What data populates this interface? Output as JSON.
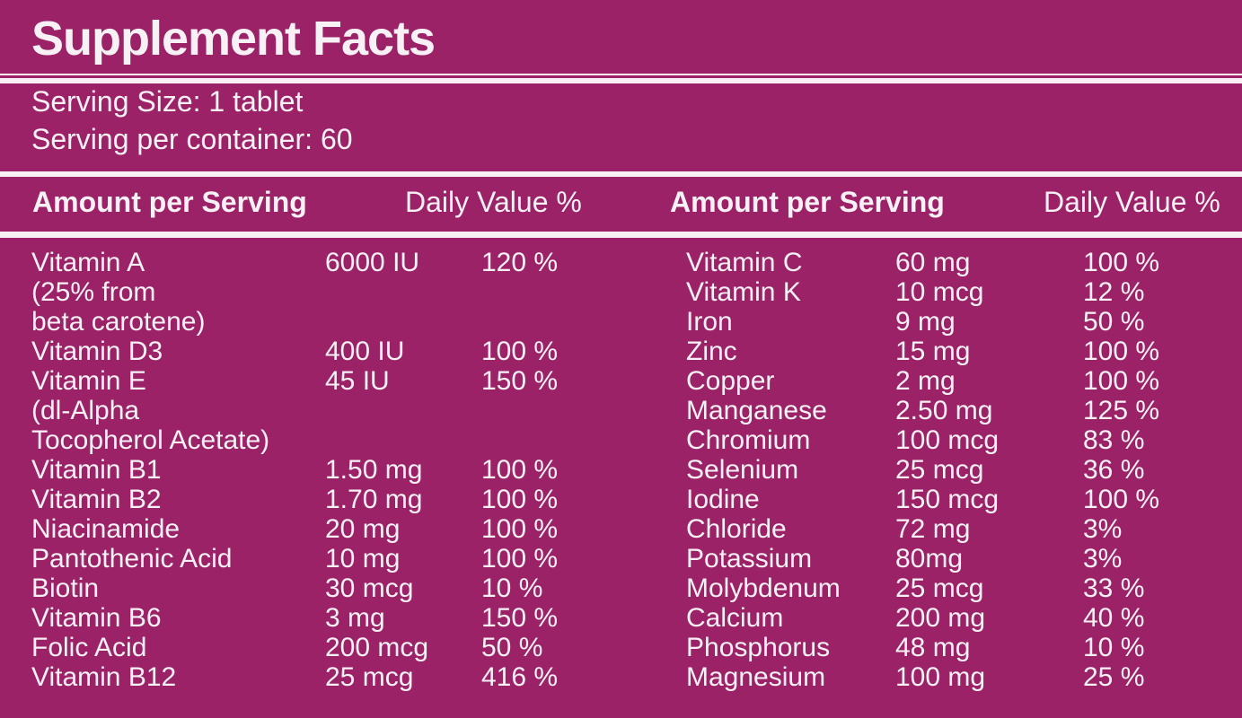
{
  "label": {
    "title": "Supplement Facts",
    "serving_size": "Serving Size: 1 tablet",
    "servings_per_container": "Serving per container: 60",
    "header": {
      "amount_label": "Amount per Serving",
      "daily_value_label": "Daily Value %"
    },
    "colors": {
      "background": "#9C2267",
      "text": "#F7F1F6",
      "divider": "#F7F1F6"
    },
    "columns": {
      "left": {
        "rows": [
          {
            "name": "Vitamin A",
            "amount": "6000 IU",
            "dv": "120 %"
          },
          {
            "name": "(25% from",
            "amount": "",
            "dv": ""
          },
          {
            "name": "beta carotene)",
            "amount": "",
            "dv": ""
          },
          {
            "name": "Vitamin D3",
            "amount": "400 IU",
            "dv": "100 %"
          },
          {
            "name": "Vitamin E",
            "amount": "45 IU",
            "dv": "150 %"
          },
          {
            "name": "(dl-Alpha",
            "amount": "",
            "dv": ""
          },
          {
            "name": "Tocopherol Acetate)",
            "amount": "",
            "dv": ""
          },
          {
            "name": "Vitamin B1",
            "amount": "1.50 mg",
            "dv": "100 %"
          },
          {
            "name": "Vitamin B2",
            "amount": "1.70 mg",
            "dv": "100 %"
          },
          {
            "name": "Niacinamide",
            "amount": "20 mg",
            "dv": "100 %"
          },
          {
            "name": "Pantothenic Acid",
            "amount": "10 mg",
            "dv": "100 %"
          },
          {
            "name": "Biotin",
            "amount": "30 mcg",
            "dv": "10 %"
          },
          {
            "name": "Vitamin B6",
            "amount": "3 mg",
            "dv": "150 %"
          },
          {
            "name": "Folic Acid",
            "amount": "200 mcg",
            "dv": "50 %"
          },
          {
            "name": "Vitamin B12",
            "amount": "25 mcg",
            "dv": "416 %"
          }
        ]
      },
      "right": {
        "rows": [
          {
            "name": "Vitamin C",
            "amount": "60 mg",
            "dv": "100 %"
          },
          {
            "name": "Vitamin K",
            "amount": "10 mcg",
            "dv": "12 %"
          },
          {
            "name": "Iron",
            "amount": "9 mg",
            "dv": "50 %"
          },
          {
            "name": "Zinc",
            "amount": "15 mg",
            "dv": "100 %"
          },
          {
            "name": "Copper",
            "amount": "2 mg",
            "dv": "100 %"
          },
          {
            "name": "Manganese",
            "amount": "2.50 mg",
            "dv": "125 %"
          },
          {
            "name": "Chromium",
            "amount": "100 mcg",
            "dv": "83 %"
          },
          {
            "name": "Selenium",
            "amount": "25 mcg",
            "dv": "36 %"
          },
          {
            "name": "Iodine",
            "amount": "150 mcg",
            "dv": "100 %"
          },
          {
            "name": "Chloride",
            "amount": "72 mg",
            "dv": "3%"
          },
          {
            "name": "Potassium",
            "amount": "80mg",
            "dv": "3%"
          },
          {
            "name": "Molybdenum",
            "amount": "25 mcg",
            "dv": "33 %"
          },
          {
            "name": "Calcium",
            "amount": "200 mg",
            "dv": "40 %"
          },
          {
            "name": "Phosphorus",
            "amount": "48 mg",
            "dv": "10 %"
          },
          {
            "name": "Magnesium",
            "amount": "100 mg",
            "dv": "25 %"
          }
        ]
      }
    }
  }
}
